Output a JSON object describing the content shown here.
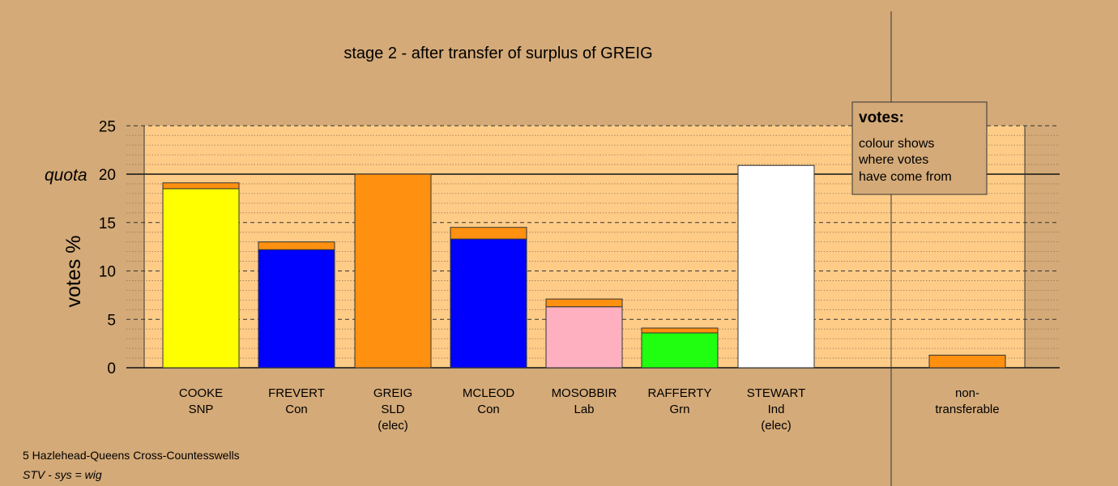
{
  "chart_data": {
    "type": "bar",
    "title": "stage 2 - after transfer of surplus of GREIG",
    "ylabel": "votes %",
    "ylim": [
      0,
      25
    ],
    "yticks": [
      0,
      5,
      10,
      15,
      20,
      25
    ],
    "quota": {
      "label": "quota",
      "value": 20
    },
    "grid": true,
    "categories": [
      {
        "name": "COOKE",
        "party": "SNP",
        "status": ""
      },
      {
        "name": "FREVERT",
        "party": "Con",
        "status": ""
      },
      {
        "name": "GREIG",
        "party": "SLD",
        "status": "(elec)"
      },
      {
        "name": "MCLEOD",
        "party": "Con",
        "status": ""
      },
      {
        "name": "MOSOBBIR",
        "party": "Lab",
        "status": ""
      },
      {
        "name": "RAFFERTY",
        "party": "Grn",
        "status": ""
      },
      {
        "name": "STEWART",
        "party": "Ind",
        "status": "(elec)"
      }
    ],
    "series": [
      {
        "values": [
          18.5,
          12.2,
          20.0,
          13.3,
          6.3,
          3.6,
          20.9
        ],
        "colors": [
          "#ffff00",
          "#0000ff",
          "#ff9010",
          "#0000ff",
          "#ffb0c0",
          "#20ff10",
          "#ffffff"
        ]
      },
      {
        "values": [
          0.6,
          0.8,
          0,
          1.2,
          0.8,
          0.5,
          0
        ],
        "colors": [
          "#ff9010",
          "#ff9010",
          "#ff9010",
          "#ff9010",
          "#ff9010",
          "#ff9010",
          "#ff9010"
        ]
      }
    ],
    "non_transferable": {
      "label": [
        "non-",
        "transferable"
      ],
      "value": 1.3,
      "color": "#ff9010"
    },
    "legend": {
      "title": "votes:",
      "lines": [
        "colour shows",
        "where votes",
        "have come from"
      ],
      "placement": "top-right"
    }
  },
  "footer": {
    "line1": "5 Hazlehead-Queens Cross-Countesswells",
    "line2": "STV - sys = wig"
  },
  "colors": {
    "background": "#d4aa78",
    "plot_area": "#ffcc88",
    "legend_bg": "#d4aa78"
  }
}
